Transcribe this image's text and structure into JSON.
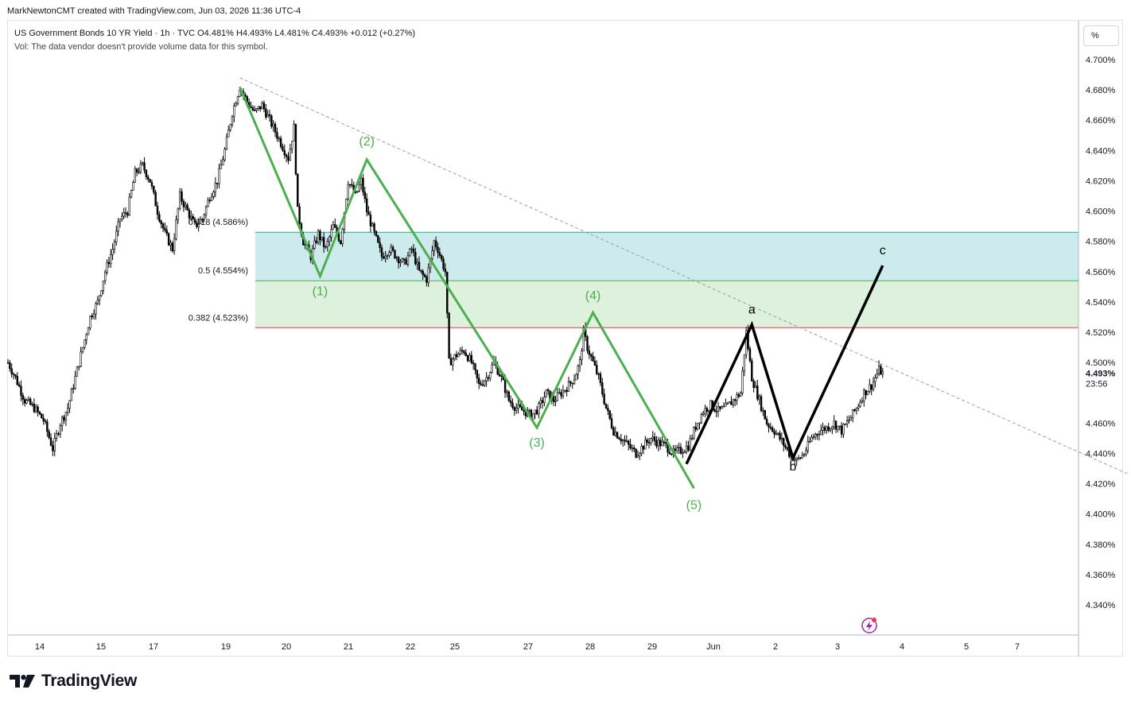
{
  "attribution": "MarkNewtonCMT created with TradingView.com, Jun 03, 2026 11:36 UTC-4",
  "legend": {
    "line1": "US Government Bonds 10 YR Yield · 1h · TVC  O4.481%  H4.493%  L4.481%  C4.493%  +0.012 (+0.27%)",
    "line2": "Vol: The data vendor doesn't provide volume data for this symbol."
  },
  "unit_button": "%",
  "logo": {
    "text": "TradingView"
  },
  "colors": {
    "candle": "#000000",
    "green_wave": "#4caf50",
    "black_wave": "#000000",
    "fib_618": "#26a69a",
    "fib_05": "#4caf50",
    "fib_382": "#f23645",
    "zone_upper": "#cdebec",
    "zone_lower": "#def1dc",
    "trendline": "#9e9e9e",
    "last_price_bg": "#ffffff"
  },
  "chart_data": {
    "type": "line",
    "y_axis": {
      "unit": "%",
      "range": [
        4.322,
        4.71
      ],
      "ticks": [
        "4.340%",
        "4.360%",
        "4.380%",
        "4.400%",
        "4.420%",
        "4.440%",
        "4.460%",
        "4.480%",
        "4.500%",
        "4.520%",
        "4.540%",
        "4.560%",
        "4.580%",
        "4.600%",
        "4.620%",
        "4.640%",
        "4.660%",
        "4.680%",
        "4.700%"
      ],
      "last_price": "4.493%",
      "countdown": "23:56"
    },
    "x_axis": {
      "ticks": [
        "14",
        "15",
        "17",
        "19",
        "20",
        "21",
        "22",
        "25",
        "27",
        "28",
        "29",
        "Jun",
        "2",
        "3",
        "4",
        "5",
        "7"
      ]
    },
    "fib_levels": [
      {
        "label": "0.618",
        "value_label": "(4.586%)",
        "value": 4.586
      },
      {
        "label": "0.5",
        "value_label": "(4.554%)",
        "value": 4.554
      },
      {
        "label": "0.382",
        "value_label": "(4.523%)",
        "value": 4.523
      }
    ],
    "price_path": [
      [
        0,
        4.5
      ],
      [
        4,
        4.49
      ],
      [
        9,
        4.475
      ],
      [
        14,
        4.47
      ],
      [
        19,
        4.462
      ],
      [
        24,
        4.443
      ],
      [
        28,
        4.46
      ],
      [
        32,
        4.47
      ],
      [
        36,
        4.49
      ],
      [
        40,
        4.51
      ],
      [
        44,
        4.53
      ],
      [
        48,
        4.54
      ],
      [
        52,
        4.56
      ],
      [
        56,
        4.575
      ],
      [
        60,
        4.595
      ],
      [
        64,
        4.6
      ],
      [
        68,
        4.625
      ],
      [
        72,
        4.63
      ],
      [
        76,
        4.62
      ],
      [
        80,
        4.6
      ],
      [
        84,
        4.585
      ],
      [
        88,
        4.575
      ],
      [
        92,
        4.61
      ],
      [
        96,
        4.6
      ],
      [
        100,
        4.59
      ],
      [
        104,
        4.595
      ],
      [
        108,
        4.61
      ],
      [
        112,
        4.62
      ],
      [
        116,
        4.64
      ],
      [
        120,
        4.665
      ],
      [
        124,
        4.682
      ],
      [
        128,
        4.672
      ],
      [
        132,
        4.665
      ],
      [
        136,
        4.67
      ],
      [
        140,
        4.66
      ],
      [
        144,
        4.65
      ],
      [
        148,
        4.64
      ],
      [
        150,
        4.635
      ],
      [
        153,
        4.655
      ],
      [
        155,
        4.6
      ],
      [
        158,
        4.58
      ],
      [
        162,
        4.57
      ],
      [
        166,
        4.585
      ],
      [
        170,
        4.575
      ],
      [
        174,
        4.59
      ],
      [
        178,
        4.58
      ],
      [
        182,
        4.62
      ],
      [
        186,
        4.61
      ],
      [
        189,
        4.62
      ],
      [
        192,
        4.6
      ],
      [
        196,
        4.585
      ],
      [
        200,
        4.57
      ],
      [
        204,
        4.575
      ],
      [
        208,
        4.57
      ],
      [
        212,
        4.565
      ],
      [
        216,
        4.575
      ],
      [
        220,
        4.56
      ],
      [
        224,
        4.555
      ],
      [
        228,
        4.58
      ],
      [
        230,
        4.575
      ],
      [
        234,
        4.56
      ],
      [
        236,
        4.5
      ],
      [
        240,
        4.505
      ],
      [
        244,
        4.508
      ],
      [
        248,
        4.5
      ],
      [
        252,
        4.485
      ],
      [
        256,
        4.49
      ],
      [
        260,
        4.5
      ],
      [
        264,
        4.49
      ],
      [
        268,
        4.475
      ],
      [
        272,
        4.47
      ],
      [
        276,
        4.468
      ],
      [
        280,
        4.465
      ],
      [
        284,
        4.47
      ],
      [
        288,
        4.48
      ],
      [
        292,
        4.475
      ],
      [
        296,
        4.48
      ],
      [
        300,
        4.485
      ],
      [
        303,
        4.49
      ],
      [
        306,
        4.5
      ],
      [
        308,
        4.52
      ],
      [
        310,
        4.51
      ],
      [
        313,
        4.5
      ],
      [
        316,
        4.49
      ],
      [
        320,
        4.47
      ],
      [
        324,
        4.455
      ],
      [
        328,
        4.45
      ],
      [
        332,
        4.445
      ],
      [
        336,
        4.44
      ],
      [
        340,
        4.445
      ],
      [
        344,
        4.45
      ],
      [
        348,
        4.447
      ],
      [
        352,
        4.445
      ],
      [
        356,
        4.44
      ],
      [
        360,
        4.442
      ],
      [
        364,
        4.445
      ],
      [
        368,
        4.458
      ],
      [
        372,
        4.468
      ],
      [
        376,
        4.472
      ],
      [
        380,
        4.468
      ],
      [
        384,
        4.47
      ],
      [
        388,
        4.475
      ],
      [
        392,
        4.48
      ],
      [
        395,
        4.52
      ],
      [
        398,
        4.49
      ],
      [
        402,
        4.475
      ],
      [
        406,
        4.46
      ],
      [
        410,
        4.455
      ],
      [
        414,
        4.448
      ],
      [
        418,
        4.44
      ],
      [
        422,
        4.435
      ],
      [
        426,
        4.44
      ],
      [
        430,
        4.45
      ],
      [
        434,
        4.455
      ],
      [
        438,
        4.457
      ],
      [
        442,
        4.46
      ],
      [
        446,
        4.455
      ],
      [
        450,
        4.462
      ],
      [
        454,
        4.47
      ],
      [
        458,
        4.48
      ],
      [
        462,
        4.485
      ],
      [
        464,
        4.49
      ],
      [
        466,
        4.495
      ],
      [
        468,
        4.493
      ]
    ],
    "trendline": [
      [
        124,
        4.688
      ],
      [
        600,
        4.426
      ]
    ],
    "wave_counts": [
      {
        "label": "(1)",
        "price": 4.557,
        "index": 167
      },
      {
        "label": "(2)",
        "price": 4.634,
        "index": 192
      },
      {
        "label": "(3)",
        "price": 4.457,
        "index": 283
      },
      {
        "label": "(4)",
        "price": 4.533,
        "index": 313
      },
      {
        "label": "(5)",
        "price": 4.417,
        "index": 367
      },
      {
        "label": "a",
        "price": 4.525,
        "index": 398
      },
      {
        "label": "b",
        "price": 4.437,
        "index": 420
      },
      {
        "label": "c",
        "price": 4.564,
        "index": 468
      }
    ],
    "green_wave_path": [
      [
        124,
        4.682
      ],
      [
        167,
        4.557
      ],
      [
        192,
        4.634
      ],
      [
        283,
        4.457
      ],
      [
        313,
        4.533
      ],
      [
        367,
        4.417
      ]
    ],
    "black_wave_path": [
      [
        363,
        4.433
      ],
      [
        398,
        4.525
      ],
      [
        420,
        4.437
      ],
      [
        468,
        4.564
      ]
    ]
  }
}
